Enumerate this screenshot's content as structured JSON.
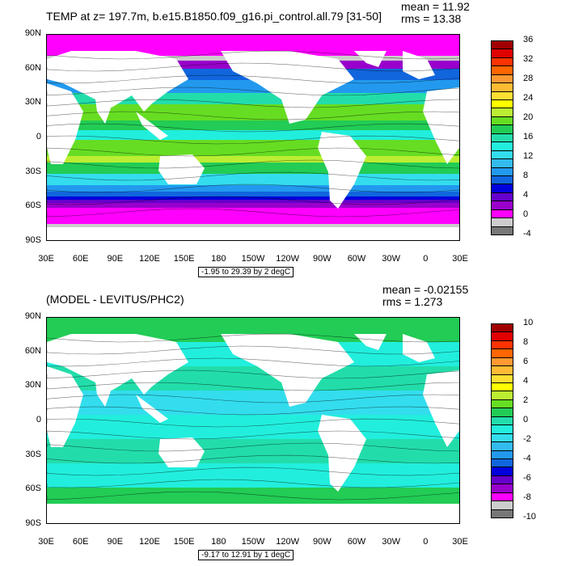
{
  "panels": [
    {
      "title": "TEMP at z= 197.7m, b.e15.B1850.f09_g16.pi_control.all.79 [31-50]",
      "mean_text": "mean = 11.92",
      "rms_text": "rms = 13.38",
      "range_text": "-1.95 to 29.39 by 2 degC",
      "y_ticks": [
        "90N",
        "60N",
        "30N",
        "0",
        "30S",
        "60S",
        "90S"
      ],
      "x_ticks": [
        "30E",
        "60E",
        "90E",
        "120E",
        "150E",
        "180",
        "150W",
        "120W",
        "90W",
        "60W",
        "30W",
        "0",
        "30E"
      ],
      "colorbar_labels": [
        "36",
        "32",
        "28",
        "24",
        "20",
        "16",
        "12",
        "8",
        "4",
        "0",
        "-4"
      ],
      "colors": [
        "#a00000",
        "#e00000",
        "#ff3300",
        "#ff6600",
        "#ff9933",
        "#ffbb33",
        "#ffe033",
        "#ffff00",
        "#bbee33",
        "#66dd22",
        "#22cc55",
        "#22ddaa",
        "#22eedd",
        "#33ddee",
        "#33bbee",
        "#2299ee",
        "#1166dd",
        "#0000dd",
        "#6600cc",
        "#9900cc",
        "#ff00ff",
        "#cccccc",
        "#777777"
      ]
    },
    {
      "title": "(MODEL - LEVITUS/PHC2)",
      "mean_text": "mean = -0.02155",
      "rms_text": "rms = 1.273",
      "range_text": "-9.17 to 12.91 by 1 degC",
      "y_ticks": [
        "90N",
        "60N",
        "30N",
        "0",
        "30S",
        "60S",
        "90S"
      ],
      "x_ticks": [
        "30E",
        "60E",
        "90E",
        "120E",
        "150E",
        "180",
        "150W",
        "120W",
        "90W",
        "60W",
        "30W",
        "0",
        "30E"
      ],
      "colorbar_labels": [
        "10",
        "8",
        "6",
        "4",
        "2",
        "0",
        "-2",
        "-4",
        "-6",
        "-8",
        "-10"
      ],
      "colors": [
        "#a00000",
        "#e00000",
        "#ff3300",
        "#ff6600",
        "#ff9933",
        "#ffbb33",
        "#ffe033",
        "#ffff00",
        "#bbee33",
        "#66dd22",
        "#22cc55",
        "#22ddaa",
        "#22eedd",
        "#33ddee",
        "#33bbee",
        "#2299ee",
        "#1166dd",
        "#0000dd",
        "#6600cc",
        "#9900cc",
        "#ff00ff",
        "#cccccc",
        "#777777"
      ]
    }
  ],
  "chart_data": [
    {
      "type": "heatmap",
      "title": "TEMP at z= 197.7m, b.e15.B1850.f09_g16.pi_control.all.79 [31-50]",
      "variable": "TEMP",
      "depth": "197.7m",
      "units": "degC",
      "mean": 11.92,
      "rms": 13.38,
      "data_min": -1.95,
      "data_max": 29.39,
      "contour_interval": 2,
      "colorbar_levels": [
        36,
        32,
        28,
        24,
        20,
        16,
        12,
        8,
        4,
        0,
        -4
      ],
      "x_ticks": [
        "30E",
        "60E",
        "90E",
        "120E",
        "150E",
        "180",
        "150W",
        "120W",
        "90W",
        "60W",
        "30W",
        "0",
        "30E"
      ],
      "y_ticks": [
        "90N",
        "60N",
        "30N",
        "0",
        "30S",
        "60S",
        "90S"
      ],
      "xlim": [
        "30E",
        "30E"
      ],
      "ylim": [
        "90S",
        "90N"
      ]
    },
    {
      "type": "heatmap",
      "title": "(MODEL - LEVITUS/PHC2)",
      "units": "degC",
      "mean": -0.02155,
      "rms": 1.273,
      "data_min": -9.17,
      "data_max": 12.91,
      "contour_interval": 1,
      "colorbar_levels": [
        10,
        8,
        6,
        4,
        2,
        0,
        -2,
        -4,
        -6,
        -8,
        -10
      ],
      "x_ticks": [
        "30E",
        "60E",
        "90E",
        "120E",
        "150E",
        "180",
        "150W",
        "120W",
        "90W",
        "60W",
        "30W",
        "0",
        "30E"
      ],
      "y_ticks": [
        "90N",
        "60N",
        "30N",
        "0",
        "30S",
        "60S",
        "90S"
      ],
      "xlim": [
        "30E",
        "30E"
      ],
      "ylim": [
        "90S",
        "90N"
      ]
    }
  ]
}
